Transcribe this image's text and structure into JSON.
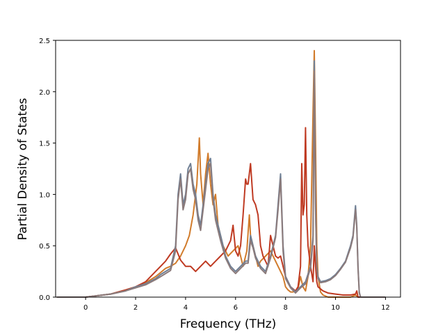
{
  "chart_data": {
    "type": "line",
    "title": "",
    "xlabel": "Frequency (THz)",
    "ylabel": "Partial Density of States",
    "xlim": [
      -1.2,
      12.6
    ],
    "ylim": [
      0.0,
      2.5
    ],
    "xticks": [
      "0",
      "2",
      "4",
      "6",
      "8",
      "10",
      "12"
    ],
    "yticks": [
      "0.0",
      "0.5",
      "1.0",
      "1.5",
      "2.0",
      "2.5"
    ],
    "grid": false,
    "legend": "none",
    "series": [
      {
        "color": "#d17b2b",
        "x": [
          -1.15,
          0,
          1,
          1.6,
          2,
          2.4,
          2.8,
          3,
          3.2,
          3.4,
          3.6,
          3.8,
          4,
          4.15,
          4.3,
          4.45,
          4.55,
          4.6,
          4.7,
          4.8,
          4.9,
          5,
          5.1,
          5.2,
          5.3,
          5.5,
          5.7,
          5.9,
          6.1,
          6.3,
          6.45,
          6.55,
          6.6,
          6.7,
          6.8,
          6.9,
          7,
          7.2,
          7.4,
          7.6,
          7.8,
          7.9,
          8,
          8.1,
          8.2,
          8.3,
          8.4,
          8.5,
          8.6,
          8.7,
          8.8,
          8.9,
          9,
          9.1,
          9.15,
          9.2,
          9.25,
          9.3,
          9.4,
          9.5,
          9.7,
          10,
          10.3,
          10.6,
          10.8,
          10.9,
          11,
          12
        ],
        "y": [
          0,
          0,
          0.03,
          0.07,
          0.1,
          0.14,
          0.2,
          0.24,
          0.28,
          0.3,
          0.33,
          0.4,
          0.5,
          0.6,
          0.8,
          1.1,
          1.55,
          1.2,
          0.9,
          1.2,
          1.4,
          1.1,
          0.9,
          1.0,
          0.7,
          0.5,
          0.4,
          0.45,
          0.5,
          0.3,
          0.45,
          0.8,
          0.6,
          0.5,
          0.4,
          0.3,
          0.35,
          0.4,
          0.45,
          0.35,
          0.25,
          0.2,
          0.1,
          0.07,
          0.05,
          0.05,
          0.06,
          0.08,
          0.2,
          0.1,
          0.06,
          0.2,
          0.5,
          1.8,
          2.4,
          1.5,
          0.5,
          0.2,
          0.05,
          0.02,
          0,
          0,
          0,
          0,
          0.02,
          0,
          0,
          0
        ]
      },
      {
        "color": "#bf3a22",
        "x": [
          -1.15,
          0,
          1,
          1.6,
          2,
          2.4,
          2.8,
          3,
          3.2,
          3.4,
          3.6,
          3.8,
          4,
          4.2,
          4.4,
          4.6,
          4.8,
          5,
          5.2,
          5.4,
          5.6,
          5.8,
          5.9,
          6,
          6.1,
          6.2,
          6.3,
          6.4,
          6.45,
          6.5,
          6.6,
          6.7,
          6.8,
          6.9,
          7,
          7.1,
          7.2,
          7.3,
          7.4,
          7.5,
          7.6,
          7.7,
          7.8,
          7.9,
          8,
          8.2,
          8.4,
          8.5,
          8.6,
          8.65,
          8.7,
          8.75,
          8.8,
          8.85,
          8.9,
          9,
          9.1,
          9.15,
          9.2,
          9.25,
          9.3,
          9.4,
          9.5,
          9.7,
          10,
          10.3,
          10.6,
          10.8,
          10.85,
          10.9,
          11,
          12
        ],
        "y": [
          0,
          0,
          0.03,
          0.07,
          0.1,
          0.15,
          0.25,
          0.3,
          0.35,
          0.42,
          0.48,
          0.36,
          0.3,
          0.3,
          0.25,
          0.3,
          0.35,
          0.3,
          0.35,
          0.4,
          0.45,
          0.55,
          0.7,
          0.45,
          0.4,
          0.5,
          0.8,
          1.15,
          1.1,
          1.1,
          1.3,
          0.95,
          0.9,
          0.8,
          0.5,
          0.4,
          0.35,
          0.3,
          0.6,
          0.5,
          0.4,
          0.38,
          0.4,
          0.3,
          0.2,
          0.1,
          0.06,
          0.1,
          0.3,
          1.3,
          0.8,
          0.9,
          1.65,
          0.8,
          0.5,
          0.3,
          0.15,
          0.5,
          0.3,
          0.15,
          0.1,
          0.08,
          0.06,
          0.04,
          0.03,
          0.02,
          0.02,
          0.03,
          0.06,
          0,
          0,
          0
        ]
      },
      {
        "color": "#6f7f94",
        "x": [
          -1.15,
          0,
          1,
          1.6,
          2,
          2.4,
          2.8,
          3,
          3.2,
          3.4,
          3.6,
          3.7,
          3.8,
          3.9,
          4,
          4.1,
          4.2,
          4.3,
          4.4,
          4.5,
          4.6,
          4.7,
          4.8,
          4.9,
          5,
          5.1,
          5.2,
          5.3,
          5.4,
          5.6,
          5.8,
          6,
          6.2,
          6.4,
          6.5,
          6.6,
          6.7,
          6.8,
          7,
          7.2,
          7.4,
          7.6,
          7.7,
          7.8,
          7.9,
          8,
          8.2,
          8.4,
          8.6,
          8.8,
          9,
          9.1,
          9.15,
          9.2,
          9.25,
          9.3,
          9.4,
          9.6,
          9.8,
          10,
          10.2,
          10.4,
          10.6,
          10.7,
          10.8,
          10.85,
          10.9,
          10.95,
          11,
          12
        ],
        "y": [
          0,
          0,
          0.03,
          0.06,
          0.1,
          0.13,
          0.18,
          0.22,
          0.25,
          0.28,
          0.5,
          1.0,
          1.2,
          0.9,
          1.0,
          1.25,
          1.3,
          1.1,
          1.0,
          0.8,
          0.7,
          0.9,
          1.1,
          1.3,
          1.35,
          1.0,
          0.8,
          0.7,
          0.6,
          0.4,
          0.3,
          0.25,
          0.3,
          0.35,
          0.35,
          0.6,
          0.5,
          0.4,
          0.3,
          0.25,
          0.4,
          0.6,
          0.9,
          1.2,
          0.5,
          0.2,
          0.1,
          0.05,
          0.1,
          0.15,
          0.3,
          0.6,
          2.3,
          0.9,
          0.3,
          0.2,
          0.15,
          0.16,
          0.18,
          0.22,
          0.28,
          0.35,
          0.5,
          0.6,
          0.89,
          0.7,
          0.3,
          0.05,
          0,
          0
        ]
      },
      {
        "color": "#8c7b7b",
        "x": [
          -1.15,
          0,
          1,
          1.6,
          2,
          2.4,
          2.8,
          3,
          3.2,
          3.4,
          3.6,
          3.7,
          3.8,
          3.9,
          4,
          4.1,
          4.2,
          4.3,
          4.4,
          4.5,
          4.6,
          4.7,
          4.8,
          4.9,
          5,
          5.1,
          5.2,
          5.3,
          5.4,
          5.6,
          5.8,
          6,
          6.2,
          6.4,
          6.5,
          6.6,
          6.7,
          6.8,
          7,
          7.2,
          7.4,
          7.6,
          7.7,
          7.8,
          7.9,
          8,
          8.2,
          8.4,
          8.6,
          8.8,
          9,
          9.1,
          9.15,
          9.2,
          9.25,
          9.3,
          9.4,
          9.6,
          9.8,
          10,
          10.2,
          10.4,
          10.6,
          10.7,
          10.8,
          10.85,
          10.9,
          10.95,
          11,
          12
        ],
        "y": [
          0,
          0,
          0.03,
          0.06,
          0.09,
          0.12,
          0.17,
          0.2,
          0.23,
          0.26,
          0.45,
          0.95,
          1.15,
          0.85,
          0.95,
          1.2,
          1.25,
          1.05,
          0.95,
          0.75,
          0.65,
          0.85,
          1.05,
          1.25,
          1.3,
          0.95,
          0.75,
          0.65,
          0.55,
          0.38,
          0.28,
          0.23,
          0.28,
          0.33,
          0.33,
          0.55,
          0.48,
          0.38,
          0.28,
          0.23,
          0.38,
          0.58,
          0.85,
          1.15,
          0.45,
          0.18,
          0.09,
          0.04,
          0.09,
          0.13,
          0.28,
          0.55,
          2.2,
          0.85,
          0.28,
          0.18,
          0.14,
          0.15,
          0.17,
          0.21,
          0.27,
          0.34,
          0.48,
          0.58,
          0.85,
          0.68,
          0.28,
          0.04,
          0,
          0
        ]
      }
    ]
  }
}
